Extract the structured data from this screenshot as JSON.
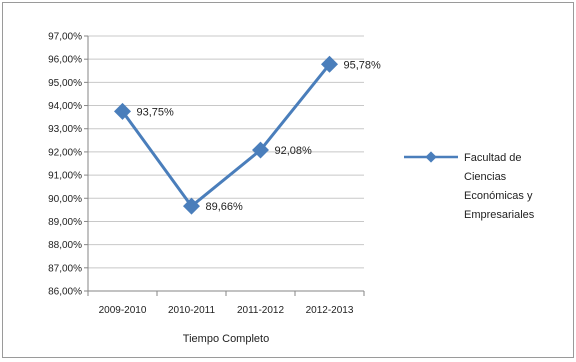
{
  "chart_data": {
    "type": "line",
    "title": "",
    "xlabel": "Tiempo Completo",
    "ylabel": "",
    "categories": [
      "2009-2010",
      "2010-2011",
      "2011-2012",
      "2012-2013"
    ],
    "series": [
      {
        "name": "Facultad de Ciencias Económicas y Empresariales",
        "values": [
          93.75,
          89.66,
          92.08,
          95.78
        ],
        "labels": [
          "93,75%",
          "89,66%",
          "92,08%",
          "95,78%"
        ],
        "color": "#4a7ebb"
      }
    ],
    "ylim": [
      86,
      97
    ],
    "ytick_step": 1,
    "ytick_labels": [
      "86,00%",
      "87,00%",
      "88,00%",
      "89,00%",
      "90,00%",
      "91,00%",
      "92,00%",
      "93,00%",
      "94,00%",
      "95,00%",
      "96,00%",
      "97,00%"
    ],
    "grid": true,
    "legend": {
      "position": "right",
      "lines": [
        "Facultad de",
        "Ciencias",
        "Económicas y",
        "Empresariales"
      ]
    }
  }
}
